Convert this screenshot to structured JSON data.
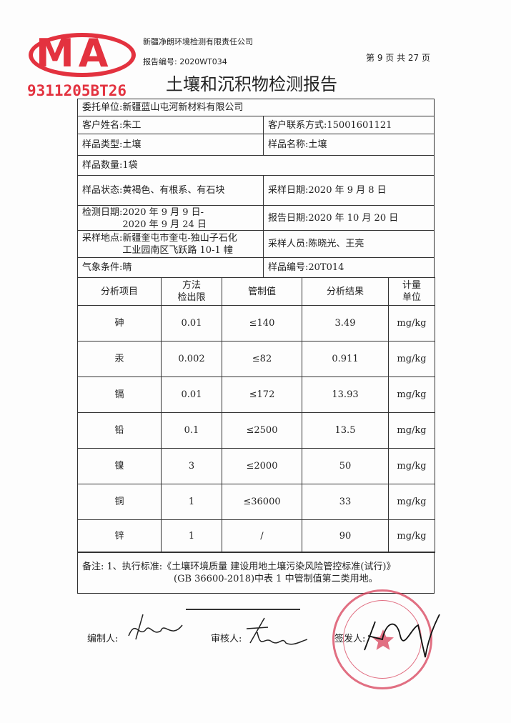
{
  "header": {
    "company": "新疆净朗环境检测有限责任公司",
    "report_no_label": "报告编号:",
    "report_no": "2020WT034",
    "page_info": "第 9 页 共 27 页",
    "cma_logo": "MA",
    "cma_code": "9311205BT26"
  },
  "title": "土壤和沉积物检测报告",
  "info": {
    "client_label": "委托单位:",
    "client": "新疆蓝山屯河新材料有限公司",
    "customer_label": "客户姓名:",
    "customer": "朱工",
    "contact_label": "客户联系方式:",
    "contact": "15001601121",
    "sample_type_label": "样品类型:",
    "sample_type": "土壤",
    "sample_name_label": "样品名称:",
    "sample_name": "土壤",
    "qty_label": "样品数量:",
    "qty": "1袋",
    "state_label": "样品状态:",
    "state": "黄褐色、有根系、有石块",
    "sampling_date_label": "采样日期:",
    "sampling_date": "2020 年 9 月 8 日",
    "test_date_label": "检测日期:",
    "test_date_1": "2020 年 9 月 9 日-",
    "test_date_2": "2020 年 9 月 24 日",
    "report_date_label": "报告日期:",
    "report_date": "2020 年 10 月 20 日",
    "site_label": "采样地点:",
    "site_1": "新疆奎屯市奎屯-独山子石化",
    "site_2": "工业园南区飞跃路 10-1 幢",
    "sampler_label": "采样人员:",
    "sampler": "陈晓光、王亮",
    "weather_label": "气象条件:",
    "weather": "晴",
    "sample_no_label": "样品编号:",
    "sample_no": "20T014"
  },
  "table": {
    "headers": [
      "分析项目",
      "方法\n检出限",
      "管制值",
      "分析结果",
      "计量\n单位"
    ],
    "rows": [
      [
        "砷",
        "0.01",
        "≤140",
        "3.49",
        "mg/kg"
      ],
      [
        "汞",
        "0.002",
        "≤82",
        "0.911",
        "mg/kg"
      ],
      [
        "镉",
        "0.01",
        "≤172",
        "13.93",
        "mg/kg"
      ],
      [
        "铅",
        "0.1",
        "≤2500",
        "13.5",
        "mg/kg"
      ],
      [
        "镍",
        "3",
        "≤2000",
        "50",
        "mg/kg"
      ],
      [
        "铜",
        "1",
        "≤36000",
        "33",
        "mg/kg"
      ],
      [
        "锌",
        "1",
        "/",
        "90",
        "mg/kg"
      ]
    ]
  },
  "remarks": {
    "line1": "备注: 1、执行标准:《土壤环境质量 建设用地土壤污染风险管控标准(试行)》",
    "line2": "(GB 36600-2018)中表 1 中管制值第二类用地。"
  },
  "signatures": {
    "compiler_label": "编制人:",
    "reviewer_label": "审核人:",
    "issuer_label": "签发人:"
  },
  "colors": {
    "stamp": "#e3323f",
    "ink": "#222222"
  }
}
